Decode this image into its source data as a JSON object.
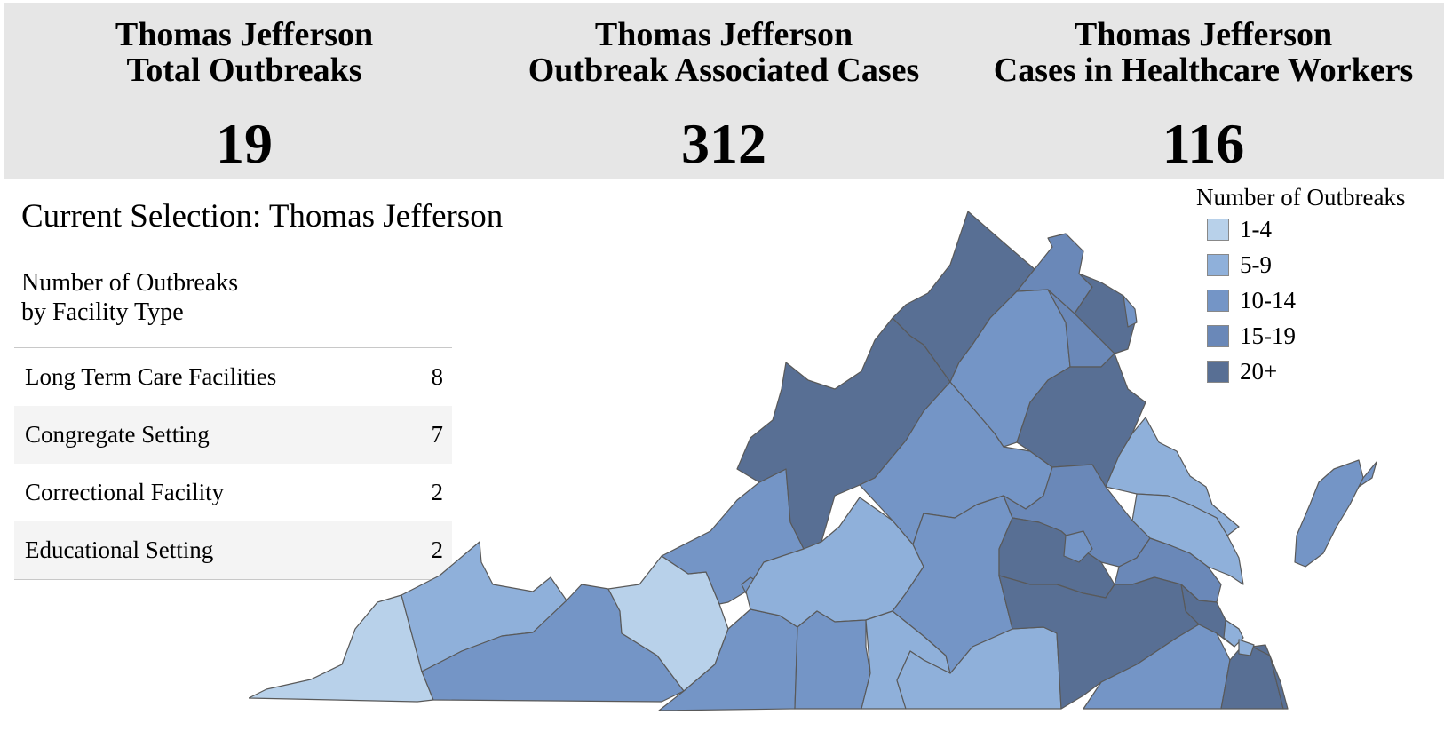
{
  "stats": [
    {
      "title_line1": "Thomas Jefferson",
      "title_line2": "Total Outbreaks",
      "value": "19"
    },
    {
      "title_line1": "Thomas Jefferson",
      "title_line2": "Outbreak Associated Cases",
      "value": "312"
    },
    {
      "title_line1": "Thomas Jefferson",
      "title_line2": "Cases in Healthcare Workers",
      "value": "116"
    }
  ],
  "selection_label": "Current Selection: Thomas Jefferson",
  "facility_table": {
    "title_line1": "Number of Outbreaks",
    "title_line2": "by Facility Type",
    "rows": [
      {
        "label": "Long Term Care Facilities",
        "value": "8"
      },
      {
        "label": "Congregate Setting",
        "value": "7"
      },
      {
        "label": "Correctional Facility",
        "value": "2"
      },
      {
        "label": "Educational Setting",
        "value": "2"
      }
    ]
  },
  "legend": {
    "title": "Number of Outbreaks",
    "items": [
      {
        "label": "1-4",
        "color": "#b8d1ea"
      },
      {
        "label": "5-9",
        "color": "#8fb0da"
      },
      {
        "label": "10-14",
        "color": "#7495c6"
      },
      {
        "label": "15-19",
        "color": "#6a88b8"
      },
      {
        "label": "20+",
        "color": "#586f94"
      }
    ]
  },
  "chart_data": {
    "type": "choropleth",
    "bins": [
      "1-4",
      "5-9",
      "10-14",
      "15-19",
      "20+"
    ]
  }
}
